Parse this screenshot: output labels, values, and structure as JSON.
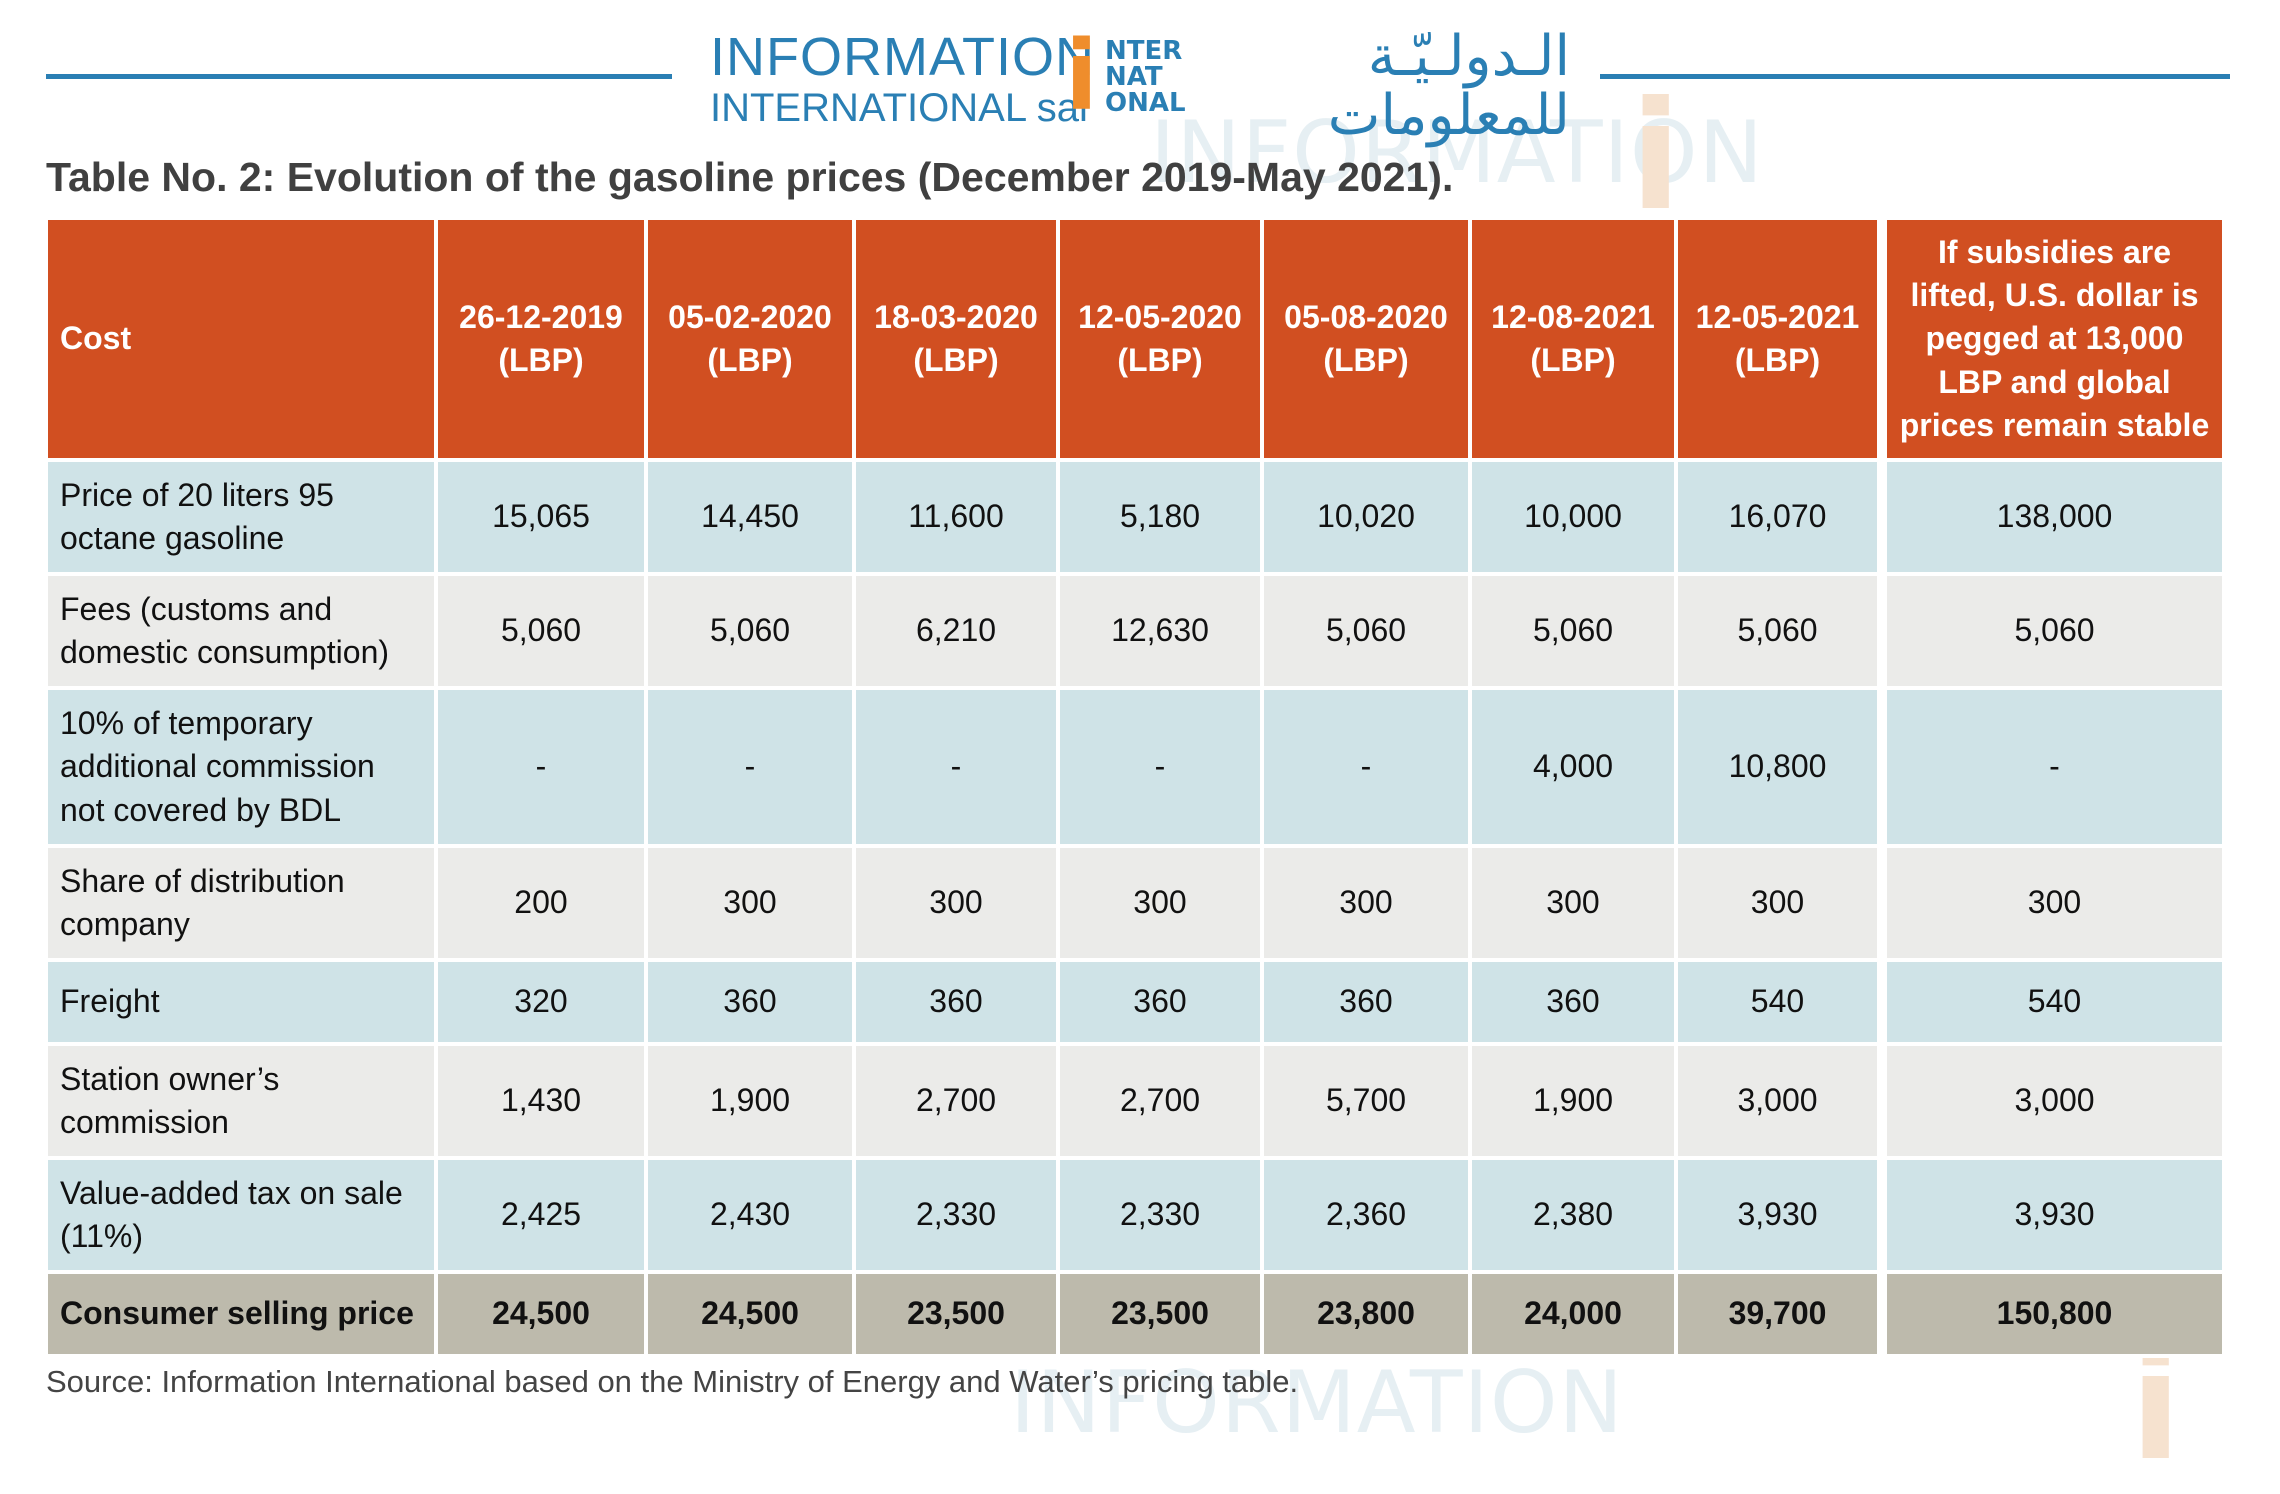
{
  "header": {
    "logo_en_line1": "INFORMATION",
    "logo_en_line2": "INTERNATIONAL sal",
    "logo_mark_letter": "i",
    "logo_mark_blocks": [
      "NTER",
      "NAT",
      "ONAL"
    ],
    "logo_ar_line1": "الـدولـيّـة",
    "logo_ar_line2": "للمعلومات"
  },
  "title": "Table No. 2: Evolution of the gasoline prices (December 2019-May 2021).",
  "table": {
    "columns": [
      "Cost",
      "26-12-2019 (LBP)",
      "05-02-2020 (LBP)",
      "18-03-2020 (LBP)",
      "12-05-2020 (LBP)",
      "05-08-2020 (LBP)",
      "12-08-2021 (LBP)",
      "12-05-2021 (LBP)",
      "If subsidies are lifted, U.S. dollar is pegged at 13,000 LBP and global prices remain stable"
    ],
    "rows": [
      {
        "label": "Price of 20 liters 95 octane gasoline",
        "values": [
          "15,065",
          "14,450",
          "11,600",
          "5,180",
          "10,020",
          "10,000",
          "16,070",
          "138,000"
        ]
      },
      {
        "label": "Fees (customs and domestic consumption)",
        "values": [
          "5,060",
          "5,060",
          "6,210",
          "12,630",
          "5,060",
          "5,060",
          "5,060",
          "5,060"
        ]
      },
      {
        "label": "10% of temporary additional commission not covered by BDL",
        "values": [
          "-",
          "-",
          "-",
          "-",
          "-",
          "4,000",
          "10,800",
          "-"
        ]
      },
      {
        "label": "Share of distribution company",
        "values": [
          "200",
          "300",
          "300",
          "300",
          "300",
          "300",
          "300",
          "300"
        ]
      },
      {
        "label": "Freight",
        "values": [
          "320",
          "360",
          "360",
          "360",
          "360",
          "360",
          "540",
          "540"
        ]
      },
      {
        "label": "Station owner’s commission",
        "values": [
          "1,430",
          "1,900",
          "2,700",
          "2,700",
          "5,700",
          "1,900",
          "3,000",
          "3,000"
        ]
      },
      {
        "label": "Value-added tax on sale (11%)",
        "values": [
          "2,425",
          "2,430",
          "2,330",
          "2,330",
          "2,360",
          "2,380",
          "3,930",
          "3,930"
        ]
      }
    ],
    "total": {
      "label": "Consumer selling price",
      "values": [
        "24,500",
        "24,500",
        "23,500",
        "23,500",
        "23,800",
        "24,000",
        "39,700",
        "150,800"
      ]
    }
  },
  "source": "Source: Information International based on the Ministry of Energy and Water’s pricing table.",
  "colors": {
    "header_bg": "#d14f21",
    "row_blue": "#cfe3e7",
    "row_grey": "#ebebe9",
    "total_bg": "#bdbaac",
    "brand_blue": "#2a7fb4",
    "brand_orange": "#ef8d2c"
  }
}
